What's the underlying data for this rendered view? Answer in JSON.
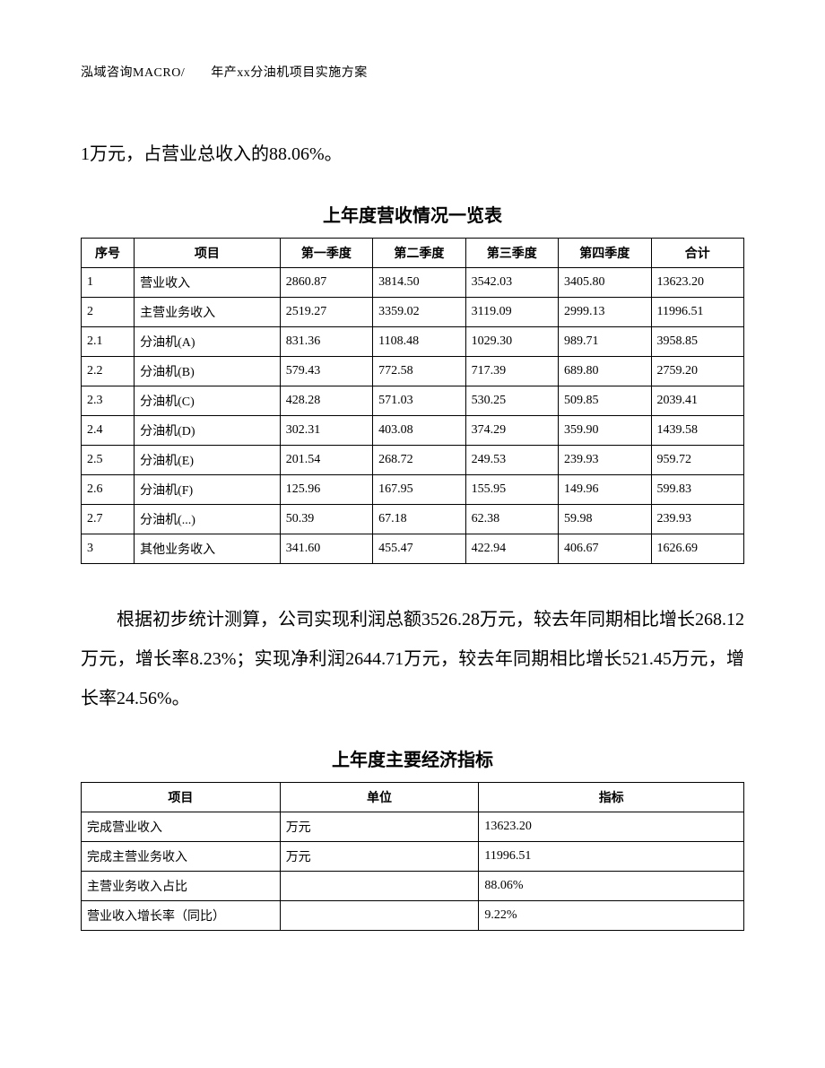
{
  "header": "泓域咨询MACRO/　　年产xx分油机项目实施方案",
  "paragraph1": "1万元，占营业总收入的88.06%。",
  "table1": {
    "title": "上年度营收情况一览表",
    "columns": [
      "序号",
      "项目",
      "第一季度",
      "第二季度",
      "第三季度",
      "第四季度",
      "合计"
    ],
    "rows": [
      [
        "1",
        "营业收入",
        "2860.87",
        "3814.50",
        "3542.03",
        "3405.80",
        "13623.20"
      ],
      [
        "2",
        "主营业务收入",
        "2519.27",
        "3359.02",
        "3119.09",
        "2999.13",
        "11996.51"
      ],
      [
        "2.1",
        "分油机(A)",
        "831.36",
        "1108.48",
        "1029.30",
        "989.71",
        "3958.85"
      ],
      [
        "2.2",
        "分油机(B)",
        "579.43",
        "772.58",
        "717.39",
        "689.80",
        "2759.20"
      ],
      [
        "2.3",
        "分油机(C)",
        "428.28",
        "571.03",
        "530.25",
        "509.85",
        "2039.41"
      ],
      [
        "2.4",
        "分油机(D)",
        "302.31",
        "403.08",
        "374.29",
        "359.90",
        "1439.58"
      ],
      [
        "2.5",
        "分油机(E)",
        "201.54",
        "268.72",
        "249.53",
        "239.93",
        "959.72"
      ],
      [
        "2.6",
        "分油机(F)",
        "125.96",
        "167.95",
        "155.95",
        "149.96",
        "599.83"
      ],
      [
        "2.7",
        "分油机(...)",
        "50.39",
        "67.18",
        "62.38",
        "59.98",
        "239.93"
      ],
      [
        "3",
        "其他业务收入",
        "341.60",
        "455.47",
        "422.94",
        "406.67",
        "1626.69"
      ]
    ]
  },
  "paragraph2": "根据初步统计测算，公司实现利润总额3526.28万元，较去年同期相比增长268.12万元，增长率8.23%；实现净利润2644.71万元，较去年同期相比增长521.45万元，增长率24.56%。",
  "table2": {
    "title": "上年度主要经济指标",
    "columns": [
      "项目",
      "单位",
      "指标"
    ],
    "rows": [
      [
        "完成营业收入",
        "万元",
        "13623.20"
      ],
      [
        "完成主营业务收入",
        "万元",
        "11996.51"
      ],
      [
        "主营业务收入占比",
        "",
        "88.06%"
      ],
      [
        "营业收入增长率（同比）",
        "",
        "9.22%"
      ]
    ]
  }
}
